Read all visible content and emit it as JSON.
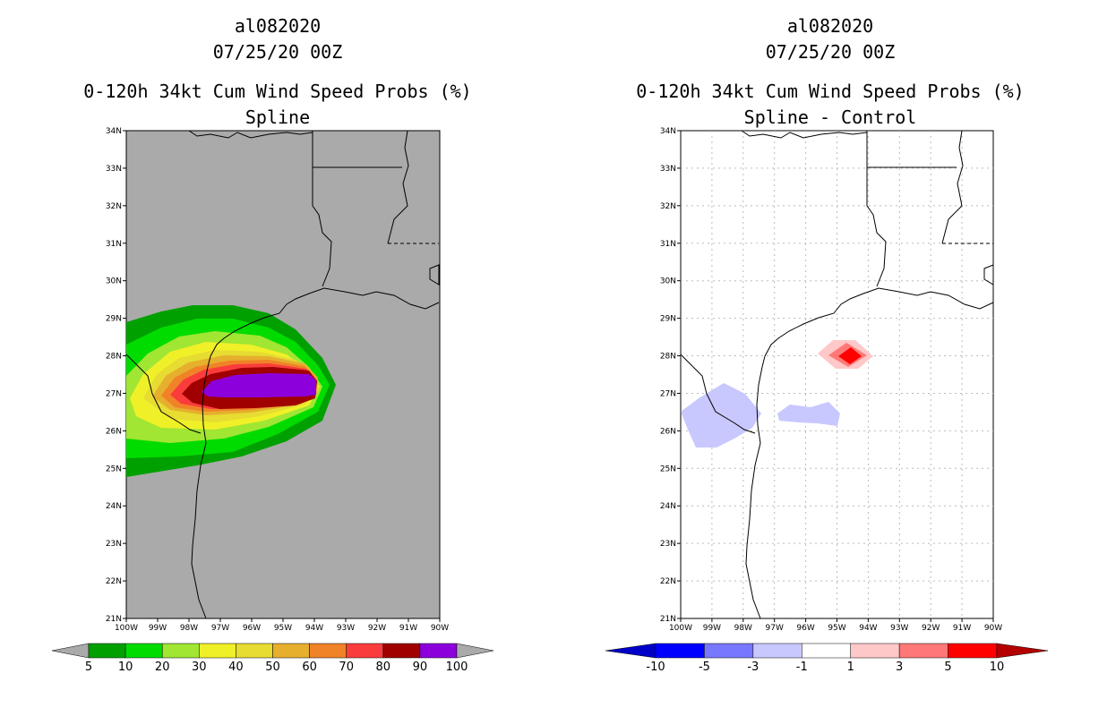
{
  "panels": [
    {
      "storm_id": "al082020",
      "datetime": "07/25/20 00Z",
      "product": "0-120h 34kt Cum Wind Speed Probs (%)",
      "subtitle": "Spline",
      "background": "#aaaaaa"
    },
    {
      "storm_id": "al082020",
      "datetime": "07/25/20 00Z",
      "product": "0-120h 34kt Cum Wind Speed Probs (%)",
      "subtitle": "Spline - Control",
      "background": "#ffffff"
    }
  ],
  "map": {
    "lat_labels": [
      "21N",
      "22N",
      "23N",
      "24N",
      "25N",
      "26N",
      "27N",
      "28N",
      "29N",
      "30N",
      "31N",
      "32N",
      "33N",
      "34N"
    ],
    "lon_labels": [
      "100W",
      "99W",
      "98W",
      "97W",
      "96W",
      "95W",
      "94W",
      "93W",
      "92W",
      "91W",
      "90W"
    ]
  },
  "legends": {
    "left": {
      "labels": [
        "5",
        "10",
        "20",
        "30",
        "40",
        "50",
        "60",
        "70",
        "80",
        "90",
        "100"
      ],
      "colors": [
        "#00a000",
        "#00dc00",
        "#a0e632",
        "#f0f028",
        "#e6dc32",
        "#e6af2d",
        "#f08228",
        "#fa3c3c",
        "#a00000",
        "#8c00dc"
      ],
      "end_color": "#aaaaaa"
    },
    "right": {
      "labels": [
        "-10",
        "-5",
        "-3",
        "-1",
        "1",
        "3",
        "5",
        "10"
      ],
      "colors": [
        "#0000ff",
        "#7878ff",
        "#c8c8ff",
        "#ffffff",
        "#ffc8c8",
        "#ff7878",
        "#ff0000"
      ],
      "low_color": "#0000c8",
      "high_color": "#b40000"
    }
  }
}
